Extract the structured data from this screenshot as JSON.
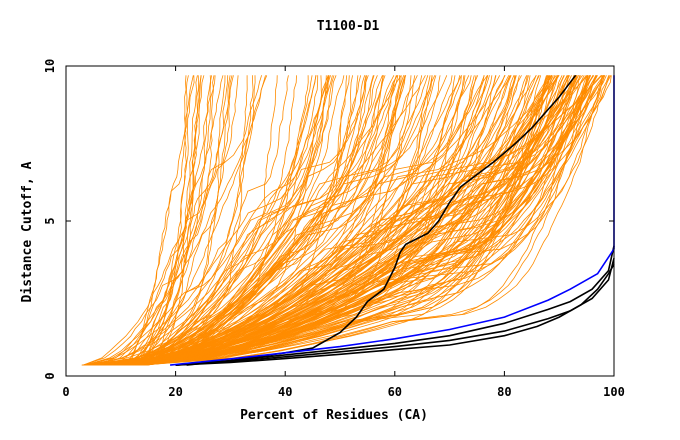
{
  "chart_data": {
    "type": "line",
    "title": "T1100-D1",
    "xlabel": "Percent of Residues (CA)",
    "ylabel": "Distance Cutoff, A",
    "xlim": [
      0,
      100
    ],
    "ylim": [
      0,
      10
    ],
    "x_ticks": [
      "0",
      "20",
      "40",
      "60",
      "80",
      "100"
    ],
    "y_ticks": [
      "0",
      "5",
      "10"
    ],
    "grid": false,
    "legend": "none",
    "colors": {
      "model_lines": "#ff8c00",
      "highlight_line": "#000000",
      "blue_line": "#0000ff",
      "axes": "#000000"
    },
    "series": [
      {
        "group": "black",
        "x": [
          22,
          30,
          40,
          45,
          50,
          53,
          55,
          58,
          60,
          61,
          62,
          66,
          68,
          70,
          72,
          75,
          78,
          82,
          85,
          88,
          90,
          93
        ],
        "y": [
          0.35,
          0.5,
          0.75,
          0.9,
          1.4,
          1.9,
          2.4,
          2.8,
          3.5,
          4.0,
          4.25,
          4.6,
          5.0,
          5.6,
          6.1,
          6.5,
          6.9,
          7.5,
          8.0,
          8.6,
          9.0,
          9.7
        ]
      },
      {
        "group": "black",
        "x": [
          20,
          30,
          40,
          50,
          60,
          70,
          80,
          88,
          92,
          96,
          99,
          100
        ],
        "y": [
          0.35,
          0.5,
          0.68,
          0.86,
          1.05,
          1.3,
          1.7,
          2.15,
          2.4,
          2.8,
          3.4,
          4.2
        ]
      },
      {
        "group": "black",
        "x": [
          20,
          30,
          40,
          50,
          60,
          70,
          80,
          88,
          92,
          96,
          99,
          100
        ],
        "y": [
          0.35,
          0.47,
          0.62,
          0.78,
          0.95,
          1.15,
          1.45,
          1.85,
          2.1,
          2.5,
          3.1,
          3.8
        ]
      },
      {
        "group": "black",
        "x": [
          20,
          30,
          40,
          50,
          60,
          70,
          80,
          86,
          90,
          94,
          97,
          99,
          100
        ],
        "y": [
          0.35,
          0.44,
          0.56,
          0.7,
          0.85,
          1.0,
          1.3,
          1.6,
          1.9,
          2.3,
          2.8,
          3.3,
          3.6
        ]
      },
      {
        "group": "blue",
        "x": [
          19,
          30,
          40,
          50,
          60,
          70,
          80,
          88,
          92,
          97,
          100,
          100
        ],
        "y": [
          0.35,
          0.55,
          0.75,
          0.95,
          1.2,
          1.5,
          1.9,
          2.45,
          2.8,
          3.3,
          4.1,
          9.7
        ]
      }
    ]
  }
}
